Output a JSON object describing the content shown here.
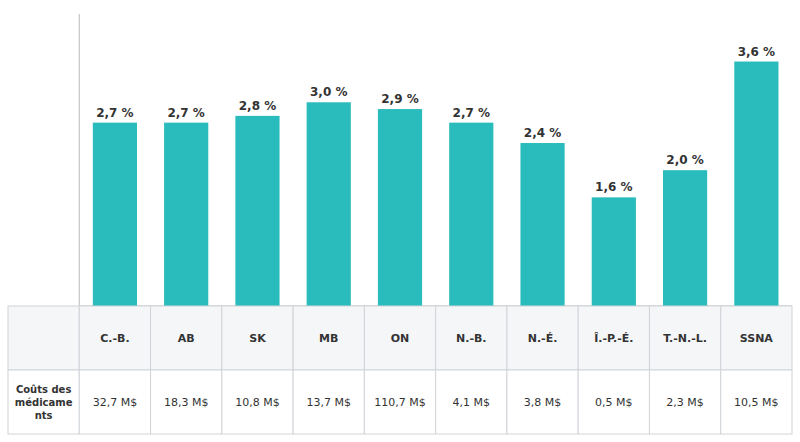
{
  "chart_data": {
    "type": "bar",
    "categories": [
      "C.-B.",
      "AB",
      "SK",
      "MB",
      "ON",
      "N.-B.",
      "N.‑É.",
      "Î.-P.-É.",
      "T.-N.-L.",
      "SSNA"
    ],
    "values": [
      2.7,
      2.7,
      2.8,
      3.0,
      2.9,
      2.7,
      2.4,
      1.6,
      2.0,
      3.6
    ],
    "value_labels": [
      "2,7 %",
      "2,7 %",
      "2,8 %",
      "3,0 %",
      "2,9 %",
      "2,7 %",
      "2,4 %",
      "1,6 %",
      "2,0 %",
      "3,6 %"
    ],
    "data_labels": true,
    "color": "#2abcbc",
    "ylim": [
      0,
      4.3
    ],
    "tick_labels": false,
    "grid": false,
    "table_row_label": [
      "Coûts des",
      "médicame",
      "nts"
    ],
    "table_values": [
      "32,7 M$",
      "18,3 M$",
      "10,8 M$",
      "13,7 M$",
      "110,7 M$",
      "4,1 M$",
      "3,8 M$",
      "0,5 M$",
      "2,3 M$",
      "10,5 M$"
    ]
  }
}
